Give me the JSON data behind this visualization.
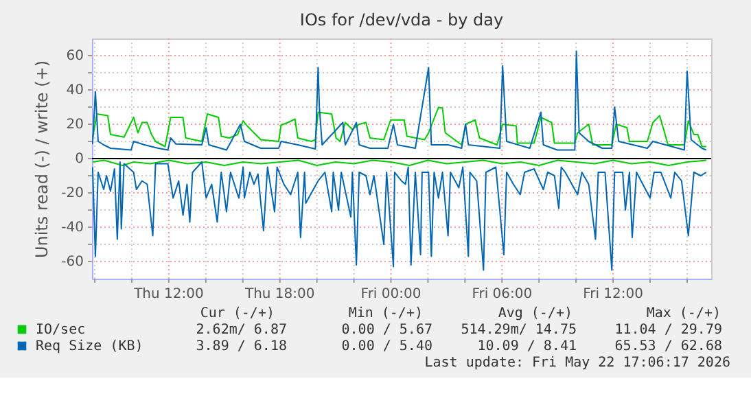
{
  "chart_data": {
    "type": "line",
    "title": "IOs for /dev/vda - by day",
    "ylabel": "Units read (-) / write (+)",
    "xlim": [
      "2026-05-21T07:51",
      "2026-05-22T17:18"
    ],
    "ylim": [
      -70,
      70
    ],
    "xticks": [
      {
        "value": "2026-05-21T08:00",
        "label": null
      },
      {
        "value": "2026-05-21T10:00",
        "label": null
      },
      {
        "value": "2026-05-21T12:00",
        "label": "Thu 12:00"
      },
      {
        "value": "2026-05-21T14:00",
        "label": null
      },
      {
        "value": "2026-05-21T16:00",
        "label": null
      },
      {
        "value": "2026-05-21T18:00",
        "label": "Thu 18:00"
      },
      {
        "value": "2026-05-21T20:00",
        "label": null
      },
      {
        "value": "2026-05-21T22:00",
        "label": null
      },
      {
        "value": "2026-05-22T00:00",
        "label": "Fri 00:00"
      },
      {
        "value": "2026-05-22T02:00",
        "label": null
      },
      {
        "value": "2026-05-22T04:00",
        "label": null
      },
      {
        "value": "2026-05-22T06:00",
        "label": "Fri 06:00"
      },
      {
        "value": "2026-05-22T08:00",
        "label": null
      },
      {
        "value": "2026-05-22T10:00",
        "label": null
      },
      {
        "value": "2026-05-22T12:00",
        "label": "Fri 12:00"
      },
      {
        "value": "2026-05-22T14:00",
        "label": null
      },
      {
        "value": "2026-05-22T16:00",
        "label": null
      }
    ],
    "yticks": [
      -60,
      {
        "value": -50,
        "label": null
      },
      -40,
      {
        "value": -30,
        "label": null
      },
      -20,
      {
        "value": -10,
        "label": null
      },
      0,
      {
        "value": 10,
        "label": null
      },
      20,
      {
        "value": 30,
        "label": null
      },
      40,
      {
        "value": 50,
        "label": null
      },
      60
    ],
    "grid": true,
    "legend": "bottom",
    "line_style": "solid",
    "marker": "none",
    "ref_lines": [
      {
        "axis": "y",
        "value": 0,
        "color": "#000000"
      }
    ],
    "series": [
      {
        "name": "IO/sec",
        "color": "#00cc00",
        "x": [
          "2026-05-21T07:53",
          "2026-05-21T08:07",
          "2026-05-21T08:42",
          "2026-05-21T08:51",
          "2026-05-21T09:35",
          "2026-05-21T10:06",
          "2026-05-21T10:20",
          "2026-05-21T10:33",
          "2026-05-21T10:50",
          "2026-05-21T11:04",
          "2026-05-21T11:17",
          "2026-05-21T11:48",
          "2026-05-21T12:06",
          "2026-05-21T12:46",
          "2026-05-21T12:55",
          "2026-05-21T13:47",
          "2026-05-21T14:05",
          "2026-05-21T14:41",
          "2026-05-21T14:50",
          "2026-05-21T15:16",
          "2026-05-21T15:43",
          "2026-05-21T16:01",
          "2026-05-21T16:14",
          "2026-05-21T16:36",
          "2026-05-21T16:58",
          "2026-05-21T17:56",
          "2026-05-21T18:04",
          "2026-05-21T18:26",
          "2026-05-21T18:49",
          "2026-05-21T18:58",
          "2026-05-21T19:42",
          "2026-05-21T19:55",
          "2026-05-21T20:04",
          "2026-05-21T20:48",
          "2026-05-21T21:02",
          "2026-05-21T21:15",
          "2026-05-21T21:32",
          "2026-05-21T21:55",
          "2026-05-21T22:17",
          "2026-05-21T22:39",
          "2026-05-21T22:52",
          "2026-05-21T23:37",
          "2026-05-21T23:59",
          "2026-05-22T00:43",
          "2026-05-22T00:52",
          "2026-05-22T01:49",
          "2026-05-22T02:02",
          "2026-05-22T02:34",
          "2026-05-22T02:47",
          "2026-05-22T02:56",
          "2026-05-22T03:49",
          "2026-05-22T04:02",
          "2026-05-22T04:33",
          "2026-05-22T04:47",
          "2026-05-22T05:44",
          "2026-05-22T06:02",
          "2026-05-22T06:46",
          "2026-05-22T06:50",
          "2026-05-22T07:44",
          "2026-05-22T08:06",
          "2026-05-22T08:41",
          "2026-05-22T08:50",
          "2026-05-22T09:56",
          "2026-05-22T10:05",
          "2026-05-22T10:41",
          "2026-05-22T10:54",
          "2026-05-22T11:56",
          "2026-05-22T12:10",
          "2026-05-22T12:45",
          "2026-05-22T12:53",
          "2026-05-22T13:51",
          "2026-05-22T14:09",
          "2026-05-22T14:31",
          "2026-05-22T14:44",
          "2026-05-22T14:58",
          "2026-05-22T15:51",
          "2026-05-22T16:04",
          "2026-05-22T16:22",
          "2026-05-22T16:35",
          "2026-05-22T16:48",
          "2026-05-22T17:02"
        ],
        "values": [
          12,
          26,
          25,
          14,
          12.5,
          24,
          15,
          21,
          21,
          14,
          10,
          7,
          24,
          24,
          12,
          10,
          26,
          24,
          13,
          12,
          14,
          22,
          19,
          15,
          11,
          10,
          19.5,
          21,
          23,
          12,
          10,
          11,
          27,
          26,
          12,
          10,
          21,
          17,
          20,
          21,
          12,
          11,
          22.5,
          22.5,
          13,
          11,
          15,
          29.8,
          29.5,
          15,
          8,
          20,
          22.5,
          12,
          8,
          20,
          19,
          9,
          9,
          24,
          21,
          9,
          9,
          15,
          20,
          8,
          8,
          20,
          18,
          10,
          10,
          21,
          25,
          17,
          8,
          8,
          22,
          14,
          14,
          7,
          7
        ]
      },
      {
        "color": "#00cc00",
        "x": [
          "2026-05-21T07:53",
          "2026-05-21T08:30",
          "2026-05-21T09:30",
          "2026-05-21T10:06",
          "2026-05-21T11:00",
          "2026-05-21T12:00",
          "2026-05-21T13:00",
          "2026-05-21T14:00",
          "2026-05-21T15:00",
          "2026-05-21T16:00",
          "2026-05-21T17:00",
          "2026-05-21T18:00",
          "2026-05-21T19:00",
          "2026-05-21T20:00",
          "2026-05-21T21:00",
          "2026-05-21T22:00",
          "2026-05-21T23:00",
          "2026-05-22T00:00",
          "2026-05-22T01:00",
          "2026-05-22T02:00",
          "2026-05-22T03:00",
          "2026-05-22T04:00",
          "2026-05-22T05:00",
          "2026-05-22T06:00",
          "2026-05-22T07:00",
          "2026-05-22T08:00",
          "2026-05-22T09:00",
          "2026-05-22T10:00",
          "2026-05-22T11:00",
          "2026-05-22T12:00",
          "2026-05-22T13:00",
          "2026-05-22T14:00",
          "2026-05-22T15:00",
          "2026-05-22T16:00",
          "2026-05-22T17:02"
        ],
        "values": [
          -2,
          -1,
          -4,
          -2,
          -3,
          -1,
          -3,
          -2,
          -4,
          -2,
          -3,
          -2,
          -1,
          -4,
          -2,
          -3,
          -1,
          -2,
          -4,
          -1,
          -3,
          -2,
          -1,
          -3,
          -2,
          -4,
          -1,
          -2,
          -3,
          -1,
          -3,
          -2,
          -4,
          -2,
          -1
        ]
      },
      {
        "name": "Req Size (KB)",
        "color": "#0066b3",
        "x": [
          "2026-05-21T07:53",
          "2026-05-21T08:02",
          "2026-05-21T08:11",
          "2026-05-21T08:29",
          "2026-05-21T08:51",
          "2026-05-21T09:58",
          "2026-05-21T10:06",
          "2026-05-21T10:41",
          "2026-05-21T11:26",
          "2026-05-21T11:57",
          "2026-05-21T12:06",
          "2026-05-21T12:23",
          "2026-05-21T13:47",
          "2026-05-21T14:01",
          "2026-05-21T14:10",
          "2026-05-21T15:07",
          "2026-05-21T15:52",
          "2026-05-21T16:05",
          "2026-05-21T16:58",
          "2026-05-21T17:56",
          "2026-05-21T18:04",
          "2026-05-21T18:58",
          "2026-05-21T19:55",
          "2026-05-21T20:04",
          "2026-05-21T20:08",
          "2026-05-21T20:17",
          "2026-05-21T21:24",
          "2026-05-21T21:32",
          "2026-05-21T22:08",
          "2026-05-21T22:17",
          "2026-05-21T22:52",
          "2026-05-21T23:50",
          "2026-05-22T00:08",
          "2026-05-22T00:21",
          "2026-05-22T01:19",
          "2026-05-22T02:02",
          "2026-05-22T02:11",
          "2026-05-22T03:05",
          "2026-05-22T03:49",
          "2026-05-22T04:02",
          "2026-05-22T04:11",
          "2026-05-22T05:53",
          "2026-05-22T06:02",
          "2026-05-22T06:15",
          "2026-05-22T07:30",
          "2026-05-22T08:06",
          "2026-05-22T08:14",
          "2026-05-22T08:59",
          "2026-05-22T09:56",
          "2026-05-22T10:01",
          "2026-05-22T10:10",
          "2026-05-22T10:41",
          "2026-05-22T11:25",
          "2026-05-22T11:56",
          "2026-05-22T12:05",
          "2026-05-22T12:18",
          "2026-05-22T13:51",
          "2026-05-22T14:09",
          "2026-05-22T15:51",
          "2026-05-22T16:00",
          "2026-05-22T16:13",
          "2026-05-22T16:48",
          "2026-05-22T17:02"
        ],
        "values": [
          8.5,
          39,
          10,
          8,
          6,
          5,
          10,
          8,
          6,
          5,
          12,
          8.5,
          8,
          18,
          8,
          5,
          20,
          10,
          6,
          6,
          10,
          8,
          5.6,
          53,
          30,
          8,
          21,
          8,
          21,
          8,
          6,
          6,
          20,
          8,
          6,
          53,
          8,
          8,
          6,
          20,
          8,
          6,
          54,
          10,
          6,
          27,
          8,
          5,
          5,
          62.6,
          15,
          10,
          6,
          6,
          30,
          10,
          6,
          10,
          5,
          51,
          11,
          6,
          5
        ]
      },
      {
        "color": "#0066b3",
        "x": [
          "2026-05-21T07:53",
          "2026-05-21T08:02",
          "2026-05-21T08:11",
          "2026-05-21T08:29",
          "2026-05-21T08:38",
          "2026-05-21T08:51",
          "2026-05-21T09:04",
          "2026-05-21T09:13",
          "2026-05-21T09:22",
          "2026-05-21T09:26",
          "2026-05-21T09:35",
          "2026-05-21T10:06",
          "2026-05-21T10:15",
          "2026-05-21T10:33",
          "2026-05-21T10:50",
          "2026-05-21T11:08",
          "2026-05-21T11:17",
          "2026-05-21T11:57",
          "2026-05-21T12:14",
          "2026-05-21T12:32",
          "2026-05-21T12:46",
          "2026-05-21T12:59",
          "2026-05-21T13:08",
          "2026-05-21T13:17",
          "2026-05-21T13:47",
          "2026-05-21T14:01",
          "2026-05-21T14:19",
          "2026-05-21T14:37",
          "2026-05-21T14:50",
          "2026-05-21T15:07",
          "2026-05-21T15:20",
          "2026-05-21T15:47",
          "2026-05-21T16:01",
          "2026-05-21T16:05",
          "2026-05-21T16:23",
          "2026-05-21T16:36",
          "2026-05-21T16:49",
          "2026-05-21T17:07",
          "2026-05-21T17:20",
          "2026-05-21T17:43",
          "2026-05-21T17:51",
          "2026-05-21T18:13",
          "2026-05-21T18:35",
          "2026-05-21T18:58",
          "2026-05-21T19:07",
          "2026-05-21T19:20",
          "2026-05-21T19:24",
          "2026-05-21T20:04",
          "2026-05-21T20:26",
          "2026-05-21T20:48",
          "2026-05-21T20:53",
          "2026-05-21T21:10",
          "2026-05-21T21:19",
          "2026-05-21T21:50",
          "2026-05-21T21:55",
          "2026-05-21T22:08",
          "2026-05-21T22:17",
          "2026-05-21T22:39",
          "2026-05-21T22:52",
          "2026-05-21T23:05",
          "2026-05-21T23:37",
          "2026-05-21T23:46",
          "2026-05-22T00:08",
          "2026-05-22T00:12",
          "2026-05-22T00:34",
          "2026-05-22T00:47",
          "2026-05-22T00:56",
          "2026-05-22T01:05",
          "2026-05-22T01:19",
          "2026-05-22T01:36",
          "2026-05-22T01:41",
          "2026-05-22T02:02",
          "2026-05-22T02:11",
          "2026-05-22T02:20",
          "2026-05-22T02:34",
          "2026-05-22T02:47",
          "2026-05-22T03:05",
          "2026-05-22T03:13",
          "2026-05-22T03:40",
          "2026-05-22T03:53",
          "2026-05-22T04:11",
          "2026-05-22T04:16",
          "2026-05-22T04:38",
          "2026-05-22T05:00",
          "2026-05-22T05:08",
          "2026-05-22T05:40",
          "2026-05-22T06:06",
          "2026-05-22T06:15",
          "2026-05-22T06:37",
          "2026-05-22T06:59",
          "2026-05-22T07:13",
          "2026-05-22T07:44",
          "2026-05-22T08:14",
          "2026-05-22T08:28",
          "2026-05-22T08:50",
          "2026-05-22T09:04",
          "2026-05-22T09:12",
          "2026-05-22T09:25",
          "2026-05-22T10:05",
          "2026-05-22T10:19",
          "2026-05-22T10:41",
          "2026-05-22T11:03",
          "2026-05-22T11:12",
          "2026-05-22T11:34",
          "2026-05-22T11:56",
          "2026-05-22T12:05",
          "2026-05-22T12:31",
          "2026-05-22T12:40",
          "2026-05-22T12:53",
          "2026-05-22T13:02",
          "2026-05-22T13:16",
          "2026-05-22T14:00",
          "2026-05-22T14:13",
          "2026-05-22T14:35",
          "2026-05-22T15:07",
          "2026-05-22T15:20",
          "2026-05-22T15:42",
          "2026-05-22T16:04",
          "2026-05-22T16:22",
          "2026-05-22T16:44",
          "2026-05-22T17:02"
        ],
        "values": [
          -5,
          -57,
          -8,
          -18,
          -10,
          -19,
          -6,
          -47,
          -2,
          -41,
          -3,
          -8,
          -18,
          -13,
          -15,
          -45,
          -3,
          -3,
          -23,
          -13,
          -33,
          -15,
          -37,
          -8,
          -2,
          -23,
          -15,
          -37,
          -8,
          -31,
          -8,
          -23,
          -5,
          -23,
          -8,
          -15,
          -9,
          -42,
          -5,
          -31,
          -5,
          -15,
          -21,
          -8,
          -46,
          -8,
          -26,
          -13,
          -8,
          -31,
          -8,
          -30,
          -8,
          -34,
          -8,
          -62,
          -8,
          -10,
          -21,
          -10,
          -50,
          -8,
          -63,
          -8,
          -13,
          -15,
          -5,
          -62,
          -8,
          -56,
          -8,
          -8,
          -57,
          -8,
          -23,
          -8,
          -45,
          -8,
          -17,
          -5,
          -57,
          -8,
          -13,
          -65,
          -8,
          -5,
          -56,
          -8,
          -15,
          -21,
          -8,
          -6,
          -18,
          -8,
          -10,
          -29,
          -5,
          -8,
          -21,
          -8,
          -15,
          -47,
          -8,
          -8,
          -65,
          -8,
          -8,
          -30,
          -8,
          -46,
          -8,
          -23,
          -8,
          -8,
          -23,
          -8,
          -13,
          -45,
          -8,
          -10,
          -8
        ]
      }
    ],
    "annotations": [
      "Cur (-/+)",
      "Min (-/+)",
      "Avg (-/+)",
      "Max (-/+)",
      "2.62m/  6.87",
      "0.00 /  5.67",
      "514.29m/ 14.75",
      "11.04 / 29.79",
      "3.89 /  6.18",
      "0.00 /  5.40",
      "10.09 /  8.41",
      "65.53 / 62.68",
      "Last update: Fri May 22 17:06:17 2026"
    ]
  }
}
